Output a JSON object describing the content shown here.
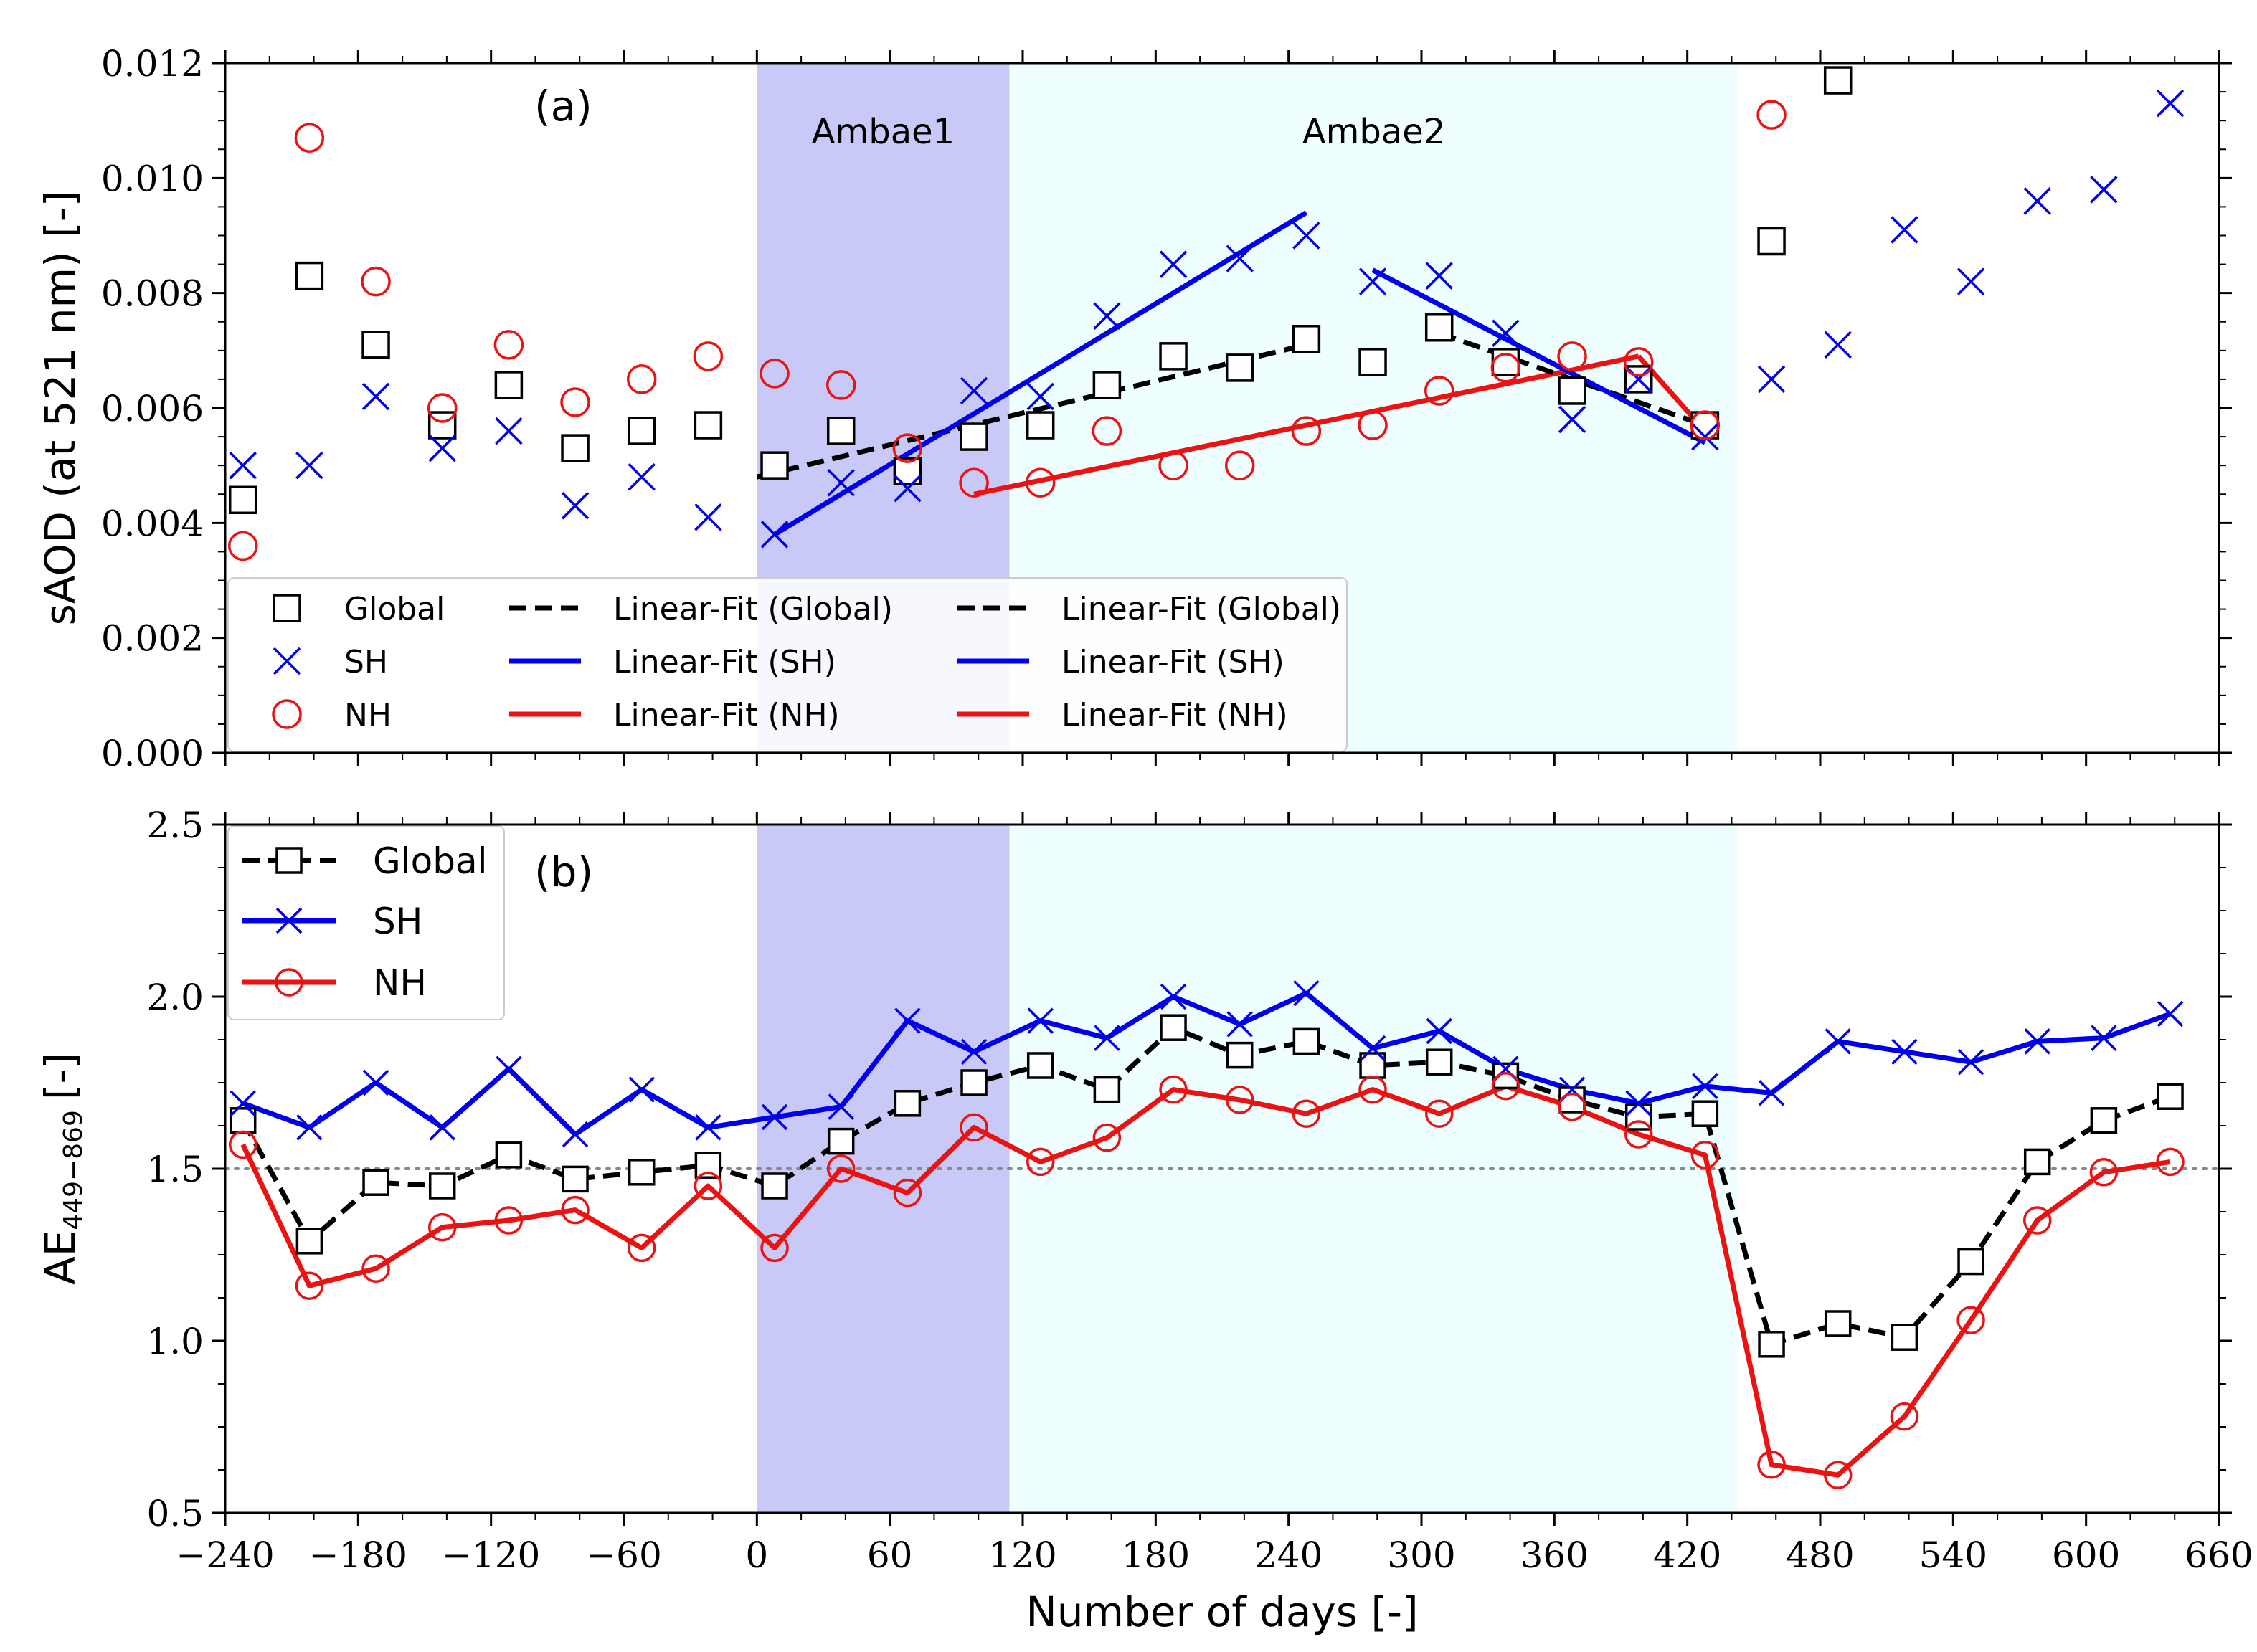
{
  "chart_data": [
    {
      "type": "scatter",
      "panel_label": "(a)",
      "ylabel": "sAOD (at 521 nm) [-]",
      "xlim": [
        -240,
        660
      ],
      "ylim": [
        0.0,
        0.012
      ],
      "x_ticks": [
        -240,
        -180,
        -120,
        -60,
        0,
        60,
        120,
        180,
        240,
        300,
        360,
        420,
        480,
        540,
        600,
        660
      ],
      "y_ticks": [
        0.0,
        0.002,
        0.004,
        0.006,
        0.008,
        0.01,
        0.012
      ],
      "y_tick_labels": [
        "0.000",
        "0.002",
        "0.004",
        "0.006",
        "0.008",
        "0.010",
        "0.012"
      ],
      "regions": [
        {
          "name": "Ambae1",
          "x_start": 0,
          "x_end": 114,
          "color": "#c9c9f7"
        },
        {
          "name": "Ambae2",
          "x_start": 114,
          "x_end": 443,
          "color": "#effefe"
        }
      ],
      "x": [
        -232,
        -202,
        -172,
        -142,
        -112,
        -82,
        -52,
        -22,
        8,
        38,
        68,
        98,
        128,
        158,
        188,
        218,
        248,
        278,
        308,
        338,
        368,
        398,
        428,
        458,
        488,
        518,
        548,
        578,
        608,
        638
      ],
      "series": [
        {
          "name": "Global",
          "marker": "square",
          "color": "#000000",
          "values": [
            0.0044,
            0.0083,
            0.0071,
            0.0057,
            0.0064,
            0.0053,
            0.0056,
            0.0057,
            0.005,
            0.0056,
            0.0049,
            0.0055,
            0.0057,
            0.0064,
            0.0069,
            0.0067,
            0.0072,
            0.0068,
            0.0074,
            0.0068,
            0.0063,
            0.0065,
            0.0057,
            0.0089,
            0.0117,
            null,
            null,
            null,
            null,
            null
          ]
        },
        {
          "name": "SH",
          "marker": "x",
          "color": "#0000ee",
          "values": [
            0.005,
            0.005,
            0.0062,
            0.0053,
            0.0056,
            0.0043,
            0.0048,
            0.0041,
            0.0038,
            0.0047,
            0.0046,
            0.0063,
            0.0062,
            0.0076,
            0.0085,
            0.0086,
            0.009,
            0.0082,
            0.0083,
            0.0073,
            0.0058,
            0.0065,
            0.0055,
            0.0065,
            0.0071,
            0.0091,
            0.0082,
            0.0096,
            0.0098,
            0.0113
          ]
        },
        {
          "name": "NH",
          "marker": "circle",
          "color": "#ee1111",
          "values": [
            0.0036,
            0.0107,
            0.0082,
            0.006,
            0.0071,
            0.0061,
            0.0065,
            0.0069,
            0.0066,
            0.0064,
            0.0053,
            0.0047,
            0.0047,
            0.0056,
            0.005,
            0.005,
            0.0056,
            0.0057,
            0.0063,
            0.0067,
            0.0069,
            0.0068,
            0.0057,
            0.0111,
            null,
            null,
            null,
            null,
            null,
            null
          ]
        }
      ],
      "fits": [
        {
          "name": "Linear-Fit (Global)",
          "style": "dashed",
          "color": "#000000",
          "x": [
            0,
            248
          ],
          "y": [
            0.0048,
            0.0071
          ]
        },
        {
          "name": "Linear-Fit (SH)",
          "style": "solid",
          "color": "#0000ee",
          "x": [
            8,
            248
          ],
          "y": [
            0.0038,
            0.0094
          ]
        },
        {
          "name": "Linear-Fit (NH)",
          "style": "solid",
          "color": "#ee1111",
          "x": [
            98,
            398
          ],
          "y": [
            0.0045,
            0.0069
          ]
        },
        {
          "name": "Linear-Fit (Global)",
          "style": "dashed",
          "color": "#000000",
          "x": [
            308,
            428
          ],
          "y": [
            0.0073,
            0.0057
          ]
        },
        {
          "name": "Linear-Fit (SH)",
          "style": "solid",
          "color": "#0000ee",
          "x": [
            278,
            428
          ],
          "y": [
            0.0084,
            0.0054
          ]
        },
        {
          "name": "Linear-Fit (NH)",
          "style": "solid",
          "color": "#ee1111",
          "x": [
            398,
            428
          ],
          "y": [
            0.0069,
            0.0056
          ]
        }
      ],
      "legend": {
        "col1": [
          "Global",
          "SH",
          "NH"
        ],
        "col2": [
          "Linear-Fit (Global)",
          "Linear-Fit (SH)",
          "Linear-Fit (NH)"
        ],
        "col3": [
          "Linear-Fit (Global)",
          "Linear-Fit (SH)",
          "Linear-Fit (NH)"
        ]
      }
    },
    {
      "type": "line",
      "panel_label": "(b)",
      "ylabel_main": "AE",
      "ylabel_sub": "449−869",
      "ylabel_unit": "[-]",
      "xlabel": "Number of days [-]",
      "xlim": [
        -240,
        660
      ],
      "ylim": [
        0.5,
        2.5
      ],
      "x_ticks": [
        -240,
        -180,
        -120,
        -60,
        0,
        60,
        120,
        180,
        240,
        300,
        360,
        420,
        480,
        540,
        600,
        660
      ],
      "x_tick_labels": [
        "−240",
        "−180",
        "−120",
        "−60",
        "0",
        "60",
        "120",
        "180",
        "240",
        "300",
        "360",
        "420",
        "480",
        "540",
        "600",
        "660"
      ],
      "y_ticks": [
        0.5,
        1.0,
        1.5,
        2.0,
        2.5
      ],
      "y_tick_labels": [
        "0.5",
        "1.0",
        "1.5",
        "2.0",
        "2.5"
      ],
      "reference_line": 1.5,
      "x": [
        -232,
        -202,
        -172,
        -142,
        -112,
        -82,
        -52,
        -22,
        8,
        38,
        68,
        98,
        128,
        158,
        188,
        218,
        248,
        278,
        308,
        338,
        368,
        398,
        428,
        458,
        488,
        518,
        548,
        578,
        608,
        638
      ],
      "series": [
        {
          "name": "Global",
          "marker": "square",
          "style": "dashed",
          "color": "#000000",
          "values": [
            1.64,
            1.29,
            1.46,
            1.45,
            1.54,
            1.47,
            1.49,
            1.51,
            1.45,
            1.58,
            1.69,
            1.75,
            1.8,
            1.73,
            1.91,
            1.83,
            1.87,
            1.8,
            1.81,
            1.77,
            1.7,
            1.65,
            1.66,
            0.99,
            1.05,
            1.01,
            1.23,
            1.52,
            1.64,
            1.71
          ]
        },
        {
          "name": "SH",
          "marker": "x",
          "style": "solid",
          "color": "#0000ee",
          "values": [
            1.69,
            1.62,
            1.75,
            1.62,
            1.79,
            1.6,
            1.73,
            1.62,
            1.65,
            1.68,
            1.93,
            1.84,
            1.93,
            1.88,
            2.0,
            1.92,
            2.01,
            1.85,
            1.9,
            1.79,
            1.73,
            1.69,
            1.74,
            1.72,
            1.87,
            1.84,
            1.81,
            1.87,
            1.88,
            1.95
          ]
        },
        {
          "name": "NH",
          "marker": "circle",
          "style": "solid",
          "color": "#ee1111",
          "values": [
            1.57,
            1.16,
            1.21,
            1.33,
            1.35,
            1.38,
            1.27,
            1.45,
            1.27,
            1.5,
            1.43,
            1.62,
            1.52,
            1.59,
            1.73,
            1.7,
            1.66,
            1.73,
            1.66,
            1.74,
            1.68,
            1.6,
            1.54,
            0.64,
            0.61,
            0.78,
            1.06,
            1.35,
            1.49,
            1.52
          ]
        }
      ],
      "legend": [
        "Global",
        "SH",
        "NH"
      ]
    }
  ]
}
